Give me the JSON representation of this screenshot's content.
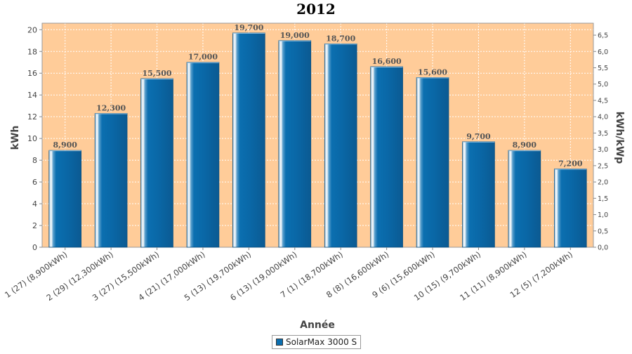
{
  "chart_data": {
    "type": "bar",
    "title": "2012",
    "xlabel": "Année",
    "ylabel": "kWh",
    "y2label": "kWh/kWp",
    "ylim": [
      0,
      20.6
    ],
    "y2lim": [
      0,
      6.867
    ],
    "yticks": [
      "0",
      "2",
      "4",
      "6",
      "8",
      "10",
      "12",
      "14",
      "16",
      "18",
      "20"
    ],
    "y2ticks": [
      "0,0",
      "0,5",
      "1,0",
      "1,5",
      "2,0",
      "2,5",
      "3,0",
      "3,5",
      "4,0",
      "4,5",
      "5,0",
      "5,5",
      "6,0",
      "6,5"
    ],
    "categories": [
      "1 (27)  (8,900kWh)",
      "2 (29)  (12,300kWh)",
      "3 (27)  (15,500kWh)",
      "4 (21)  (17,000kWh)",
      "5 (13)  (19,700kWh)",
      "6 (13)  (19,000kWh)",
      "7 (1)  (18,700kWh)",
      "8 (8)  (16,600kWh)",
      "9 (6)  (15,600kWh)",
      "10 (15)  (9,700kWh)",
      "11 (11)  (8,900kWh)",
      "12 (5)  (7,200kWh)"
    ],
    "series": [
      {
        "name": "SolarMax 3000 S",
        "values": [
          8.9,
          12.3,
          15.5,
          17.0,
          19.7,
          19.0,
          18.7,
          16.6,
          15.6,
          9.7,
          8.9,
          7.2
        ],
        "labels": [
          "8,900",
          "12,300",
          "15,500",
          "17,000",
          "19,700",
          "19,000",
          "18,700",
          "16,600",
          "15,600",
          "9,700",
          "8,900",
          "7,200"
        ]
      }
    ],
    "grid": true,
    "legend": "bottom",
    "colors": {
      "plot_background": "#ffcc99",
      "bar": "#0b6fb0",
      "grid": "#ffffff"
    }
  }
}
